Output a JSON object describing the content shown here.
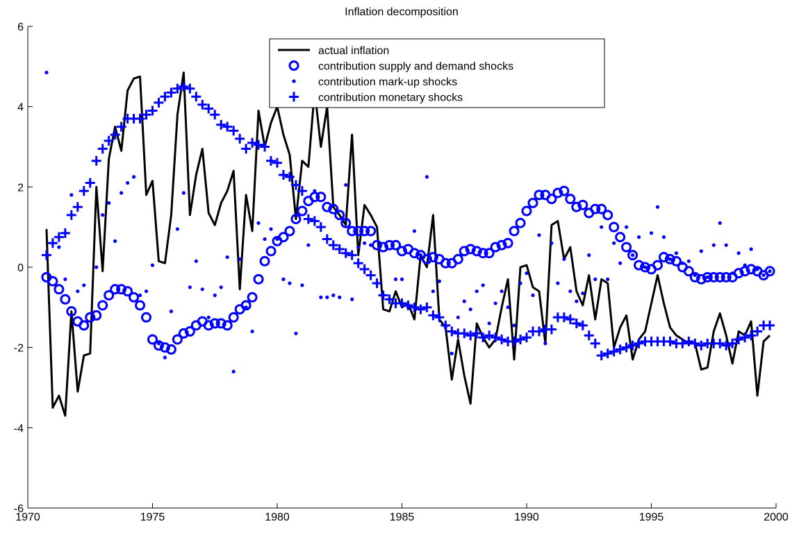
{
  "chart_data": {
    "type": "line",
    "title": "Inflation decomposition",
    "x": [
      1970.75,
      1971,
      1971.25,
      1971.5,
      1971.75,
      1972,
      1972.25,
      1972.5,
      1972.75,
      1973,
      1973.25,
      1973.5,
      1973.75,
      1974,
      1974.25,
      1974.5,
      1974.75,
      1975,
      1975.25,
      1975.5,
      1975.75,
      1976,
      1976.25,
      1976.5,
      1976.75,
      1977,
      1977.25,
      1977.5,
      1977.75,
      1978,
      1978.25,
      1978.5,
      1978.75,
      1979,
      1979.25,
      1979.5,
      1979.75,
      1980,
      1980.25,
      1980.5,
      1980.75,
      1981,
      1981.25,
      1981.5,
      1981.75,
      1982,
      1982.25,
      1982.5,
      1982.75,
      1983,
      1983.25,
      1983.5,
      1983.75,
      1984,
      1984.25,
      1984.5,
      1984.75,
      1985,
      1985.25,
      1985.5,
      1985.75,
      1986,
      1986.25,
      1986.5,
      1986.75,
      1987,
      1987.25,
      1987.5,
      1987.75,
      1988,
      1988.25,
      1988.5,
      1988.75,
      1989,
      1989.25,
      1989.5,
      1989.75,
      1990,
      1990.25,
      1990.5,
      1990.75,
      1991,
      1991.25,
      1991.5,
      1991.75,
      1992,
      1992.25,
      1992.5,
      1992.75,
      1993,
      1993.25,
      1993.5,
      1993.75,
      1994,
      1994.25,
      1994.5,
      1994.75,
      1995,
      1995.25,
      1995.5,
      1995.75,
      1996,
      1996.25,
      1996.5,
      1996.75,
      1997,
      1997.25,
      1997.5,
      1997.75,
      1998,
      1998.25,
      1998.5,
      1998.75,
      1999,
      1999.25,
      1999.5,
      1999.75
    ],
    "series": [
      {
        "name": "actual inflation",
        "color": "#000000",
        "marker": "line",
        "values": [
          0.95,
          -3.5,
          -3.2,
          -3.7,
          -1.1,
          -3.1,
          -2.2,
          -2.15,
          2.0,
          -0.1,
          2.7,
          3.5,
          2.9,
          4.4,
          4.7,
          4.75,
          1.8,
          2.15,
          0.15,
          0.1,
          1.3,
          3.8,
          4.85,
          1.3,
          2.3,
          2.95,
          1.35,
          1.05,
          1.6,
          1.9,
          2.4,
          -0.55,
          1.8,
          0.9,
          3.9,
          3.0,
          3.6,
          4.0,
          3.3,
          2.8,
          1.2,
          2.65,
          2.5,
          4.4,
          3.0,
          4.0,
          1.5,
          1.3,
          1.05,
          3.3,
          0.3,
          1.55,
          1.3,
          1.0,
          -1.05,
          -1.1,
          -0.6,
          -1.0,
          -0.9,
          -1.3,
          0.3,
          0.0,
          1.3,
          -1.3,
          -1.5,
          -2.8,
          -1.8,
          -2.7,
          -3.4,
          -1.4,
          -1.75,
          -2.0,
          -1.8,
          -1.0,
          -0.3,
          -2.3,
          0.0,
          0.05,
          -0.5,
          -0.6,
          -1.9,
          1.05,
          1.15,
          0.2,
          0.5,
          -0.6,
          -0.95,
          -0.2,
          -1.3,
          -0.3,
          -0.4,
          -2.0,
          -1.5,
          -1.2,
          -2.3,
          -1.8,
          -1.6,
          -0.9,
          -0.2,
          -0.9,
          -1.5,
          -1.7,
          -1.8,
          -1.9,
          -1.9,
          -2.55,
          -2.5,
          -1.6,
          -1.15,
          -1.7,
          -2.4,
          -1.6,
          -1.7,
          -1.35,
          -3.2,
          -1.85,
          -1.7
        ]
      },
      {
        "name": "contribution supply and demand shocks",
        "color": "#0000ff",
        "marker": "circle",
        "values": [
          -0.25,
          -0.35,
          -0.55,
          -0.8,
          -1.1,
          -1.35,
          -1.45,
          -1.25,
          -1.2,
          -0.95,
          -0.7,
          -0.55,
          -0.55,
          -0.6,
          -0.75,
          -0.95,
          -1.25,
          -1.8,
          -1.95,
          -2.0,
          -2.05,
          -1.8,
          -1.65,
          -1.6,
          -1.45,
          -1.35,
          -1.45,
          -1.4,
          -1.4,
          -1.45,
          -1.25,
          -1.05,
          -0.95,
          -0.75,
          -0.3,
          0.15,
          0.4,
          0.65,
          0.75,
          0.9,
          1.2,
          1.4,
          1.65,
          1.75,
          1.75,
          1.5,
          1.45,
          1.3,
          1.1,
          0.9,
          0.9,
          0.9,
          0.9,
          0.55,
          0.5,
          0.55,
          0.55,
          0.4,
          0.45,
          0.35,
          0.3,
          0.2,
          0.25,
          0.2,
          0.1,
          0.1,
          0.2,
          0.4,
          0.45,
          0.4,
          0.35,
          0.35,
          0.5,
          0.55,
          0.6,
          0.9,
          1.1,
          1.4,
          1.6,
          1.8,
          1.8,
          1.7,
          1.85,
          1.9,
          1.7,
          1.5,
          1.55,
          1.35,
          1.45,
          1.45,
          1.3,
          1.0,
          0.75,
          0.5,
          0.3,
          0.05,
          0.0,
          -0.05,
          0.05,
          0.25,
          0.2,
          0.15,
          0.0,
          -0.1,
          -0.25,
          -0.3,
          -0.25,
          -0.25,
          -0.25,
          -0.25,
          -0.25,
          -0.15,
          -0.1,
          -0.05,
          -0.1,
          -0.2,
          -0.1
        ]
      },
      {
        "name": "contribution mark-up shocks",
        "color": "#0000ff",
        "marker": "dot",
        "values": [
          4.85,
          0.6,
          0.5,
          -0.3,
          1.8,
          -0.6,
          -0.45,
          2.1,
          0.0,
          1.3,
          1.6,
          0.65,
          1.85,
          2.1,
          2.25,
          -0.7,
          -0.6,
          0.05,
          -1.9,
          -2.25,
          -1.1,
          0.95,
          1.85,
          -0.5,
          0.15,
          -0.55,
          -1.25,
          -0.7,
          -0.5,
          0.25,
          -2.6,
          0.2,
          -1.0,
          -1.6,
          1.1,
          0.7,
          0.95,
          0.7,
          -0.3,
          -0.4,
          -1.65,
          -0.45,
          0.55,
          1.9,
          -0.75,
          -0.75,
          -0.7,
          -0.75,
          2.05,
          -0.8,
          0.5,
          0.6,
          0.55,
          -0.4,
          -0.7,
          -0.8,
          -0.3,
          -0.3,
          -1.0,
          0.9,
          0.3,
          2.25,
          -0.6,
          -0.35,
          -1.5,
          -2.15,
          -1.25,
          -0.85,
          -1.05,
          -0.6,
          -0.45,
          -1.4,
          -0.9,
          -0.6,
          -1.0,
          -1.45,
          -0.4,
          -0.15,
          -0.7,
          0.8,
          -1.9,
          0.6,
          -0.4,
          0.2,
          -0.6,
          -0.85,
          -0.65,
          0.3,
          -0.3,
          1.0,
          -0.3,
          0.6,
          0.1,
          1.0,
          0.3,
          0.75,
          0.0,
          0.85,
          1.5,
          0.75,
          0.2,
          0.35,
          0.1,
          0.15,
          -0.2,
          0.4,
          -0.25,
          0.55,
          1.1,
          0.55,
          -0.15,
          0.35,
          0.05,
          0.45,
          -0.05,
          -0.2,
          -0.1
        ]
      },
      {
        "name": "contribution monetary shocks",
        "color": "#0000ff",
        "marker": "plus",
        "values": [
          0.3,
          0.6,
          0.75,
          0.85,
          1.3,
          1.5,
          1.9,
          2.1,
          2.65,
          2.95,
          3.15,
          3.3,
          3.5,
          3.7,
          3.7,
          3.7,
          3.8,
          3.9,
          4.1,
          4.25,
          4.35,
          4.45,
          4.5,
          4.45,
          4.25,
          4.05,
          3.95,
          3.8,
          3.55,
          3.5,
          3.4,
          3.2,
          2.95,
          3.1,
          3.05,
          3.0,
          2.65,
          2.6,
          2.3,
          2.25,
          2.05,
          1.9,
          1.2,
          1.15,
          1.0,
          0.7,
          0.55,
          0.45,
          0.35,
          0.3,
          0.1,
          -0.05,
          -0.2,
          -0.4,
          -0.7,
          -0.8,
          -0.9,
          -0.9,
          -0.95,
          -1.0,
          -1.05,
          -1.0,
          -1.2,
          -1.25,
          -1.45,
          -1.6,
          -1.65,
          -1.65,
          -1.7,
          -1.65,
          -1.75,
          -1.7,
          -1.75,
          -1.8,
          -1.85,
          -1.85,
          -1.8,
          -1.75,
          -1.6,
          -1.6,
          -1.55,
          -1.55,
          -1.25,
          -1.25,
          -1.3,
          -1.4,
          -1.45,
          -1.7,
          -1.9,
          -2.2,
          -2.15,
          -2.1,
          -2.05,
          -2.0,
          -1.95,
          -1.9,
          -1.85,
          -1.85,
          -1.85,
          -1.85,
          -1.85,
          -1.9,
          -1.9,
          -1.85,
          -1.9,
          -1.95,
          -1.9,
          -1.9,
          -1.9,
          -1.95,
          -1.9,
          -1.8,
          -1.75,
          -1.7,
          -1.6,
          -1.45,
          -1.45
        ]
      }
    ],
    "xlim": [
      1970,
      2000
    ],
    "xticks": [
      1970,
      1975,
      1980,
      1985,
      1990,
      1995,
      2000
    ],
    "ylim": [
      -6,
      6
    ],
    "yticks": [
      -6,
      -4,
      -2,
      0,
      2,
      4,
      6
    ],
    "grid": false,
    "legend": "upper center"
  }
}
